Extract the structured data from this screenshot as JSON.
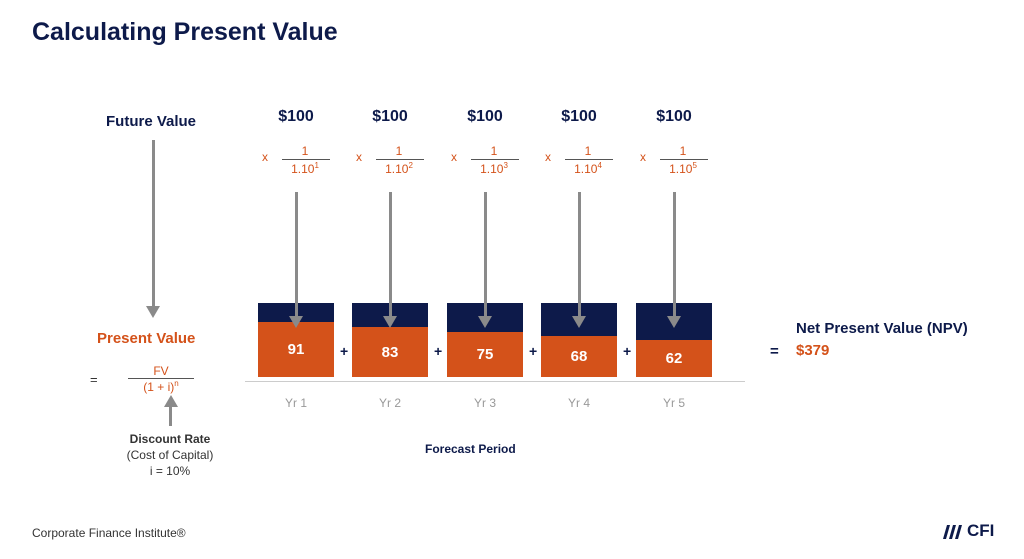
{
  "title": "Calculating Present Value",
  "future_value_label": "Future Value",
  "present_value_label": "Present Value",
  "formula": {
    "equals": "=",
    "numerator": "FV",
    "denominator": "(1 + i)",
    "exponent": "n"
  },
  "discount": {
    "title": "Discount Rate",
    "subtitle": "(Cost of Capital)",
    "rate": "i = 10%"
  },
  "years": [
    {
      "amount": "$100",
      "multiplier": "x",
      "numerator": "1",
      "base": "1.10",
      "exponent": "1",
      "pv": 91,
      "label": "Yr 1"
    },
    {
      "amount": "$100",
      "multiplier": "x",
      "numerator": "1",
      "base": "1.10",
      "exponent": "2",
      "pv": 83,
      "label": "Yr 2"
    },
    {
      "amount": "$100",
      "multiplier": "x",
      "numerator": "1",
      "base": "1.10",
      "exponent": "3",
      "pv": 75,
      "label": "Yr 3"
    },
    {
      "amount": "$100",
      "multiplier": "x",
      "numerator": "1",
      "base": "1.10",
      "exponent": "4",
      "pv": 68,
      "label": "Yr 4"
    },
    {
      "amount": "$100",
      "multiplier": "x",
      "numerator": "1",
      "base": "1.10",
      "exponent": "5",
      "pv": 62,
      "label": "Yr 5"
    }
  ],
  "plus": "+",
  "forecast_label": "Forecast Period",
  "npv": {
    "equals": "=",
    "label": "Net Present Value (NPV)",
    "value": "$379"
  },
  "footer": "Corporate Finance Institute®",
  "logo": "CFI",
  "colors": {
    "navy": "#0d1a4a",
    "orange": "#d4521a",
    "arrow": "#8a8a8a"
  }
}
